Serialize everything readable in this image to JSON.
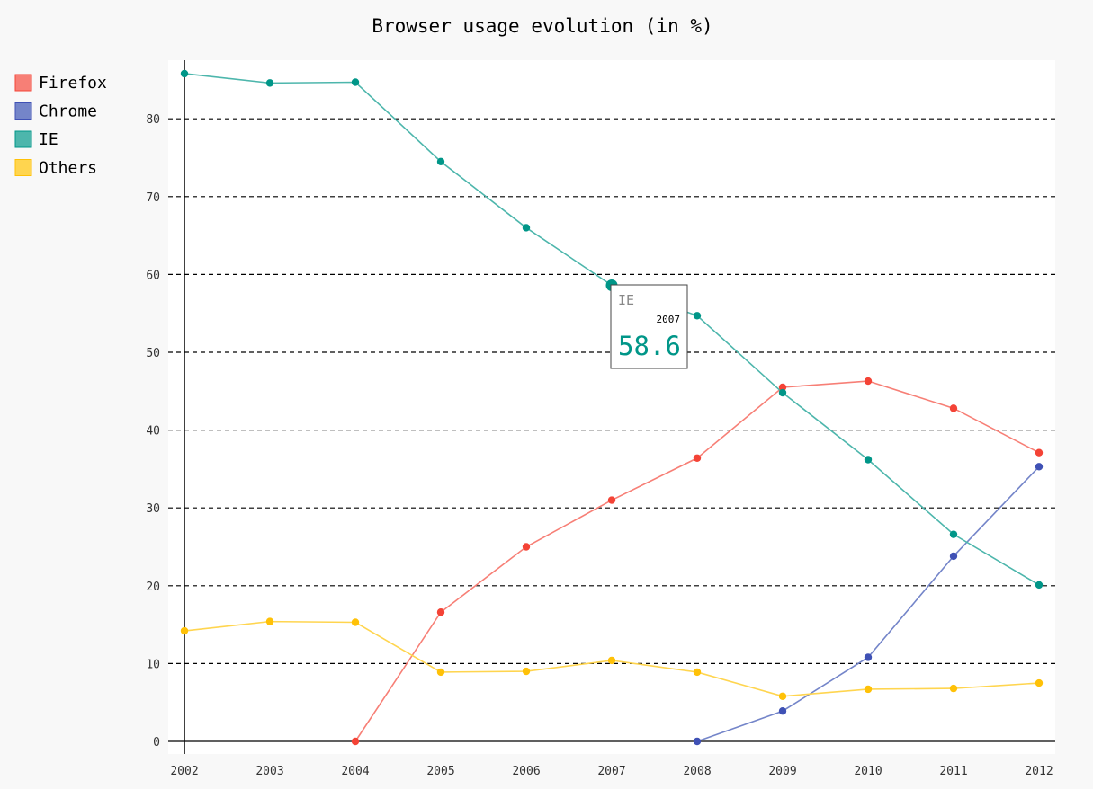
{
  "chart_data": {
    "type": "line",
    "title": "Browser usage evolution (in %)",
    "xlabel": "",
    "ylabel": "",
    "categories": [
      "2002",
      "2003",
      "2004",
      "2005",
      "2006",
      "2007",
      "2008",
      "2009",
      "2010",
      "2011",
      "2012"
    ],
    "ylim": [
      0,
      88
    ],
    "yticks": [
      0,
      10,
      20,
      30,
      40,
      50,
      60,
      70,
      80
    ],
    "grid": "horizontal dashed",
    "legend_position": "top-left",
    "series": [
      {
        "name": "Firefox",
        "color": "#f44336",
        "legend_color": "#f77f76",
        "values": [
          null,
          null,
          0,
          16.6,
          25,
          31,
          36.4,
          45.5,
          46.3,
          42.8,
          37.1
        ]
      },
      {
        "name": "Chrome",
        "color": "#3f51b5",
        "legend_color": "#7485c9",
        "values": [
          null,
          null,
          null,
          null,
          null,
          null,
          0,
          3.9,
          10.8,
          23.8,
          35.3
        ]
      },
      {
        "name": "IE",
        "color": "#009688",
        "legend_color": "#4db6ac",
        "values": [
          85.8,
          84.6,
          84.7,
          74.5,
          66,
          58.6,
          54.7,
          44.8,
          36.2,
          26.6,
          20.1
        ]
      },
      {
        "name": "Others",
        "color": "#ffc107",
        "legend_color": "#ffd54f",
        "values": [
          14.2,
          15.4,
          15.3,
          8.9,
          9,
          10.4,
          8.9,
          5.8,
          6.7,
          6.8,
          7.5
        ]
      }
    ],
    "tooltip": {
      "series": "IE",
      "x": "2007",
      "value": "58.6",
      "color": "#009688"
    }
  }
}
